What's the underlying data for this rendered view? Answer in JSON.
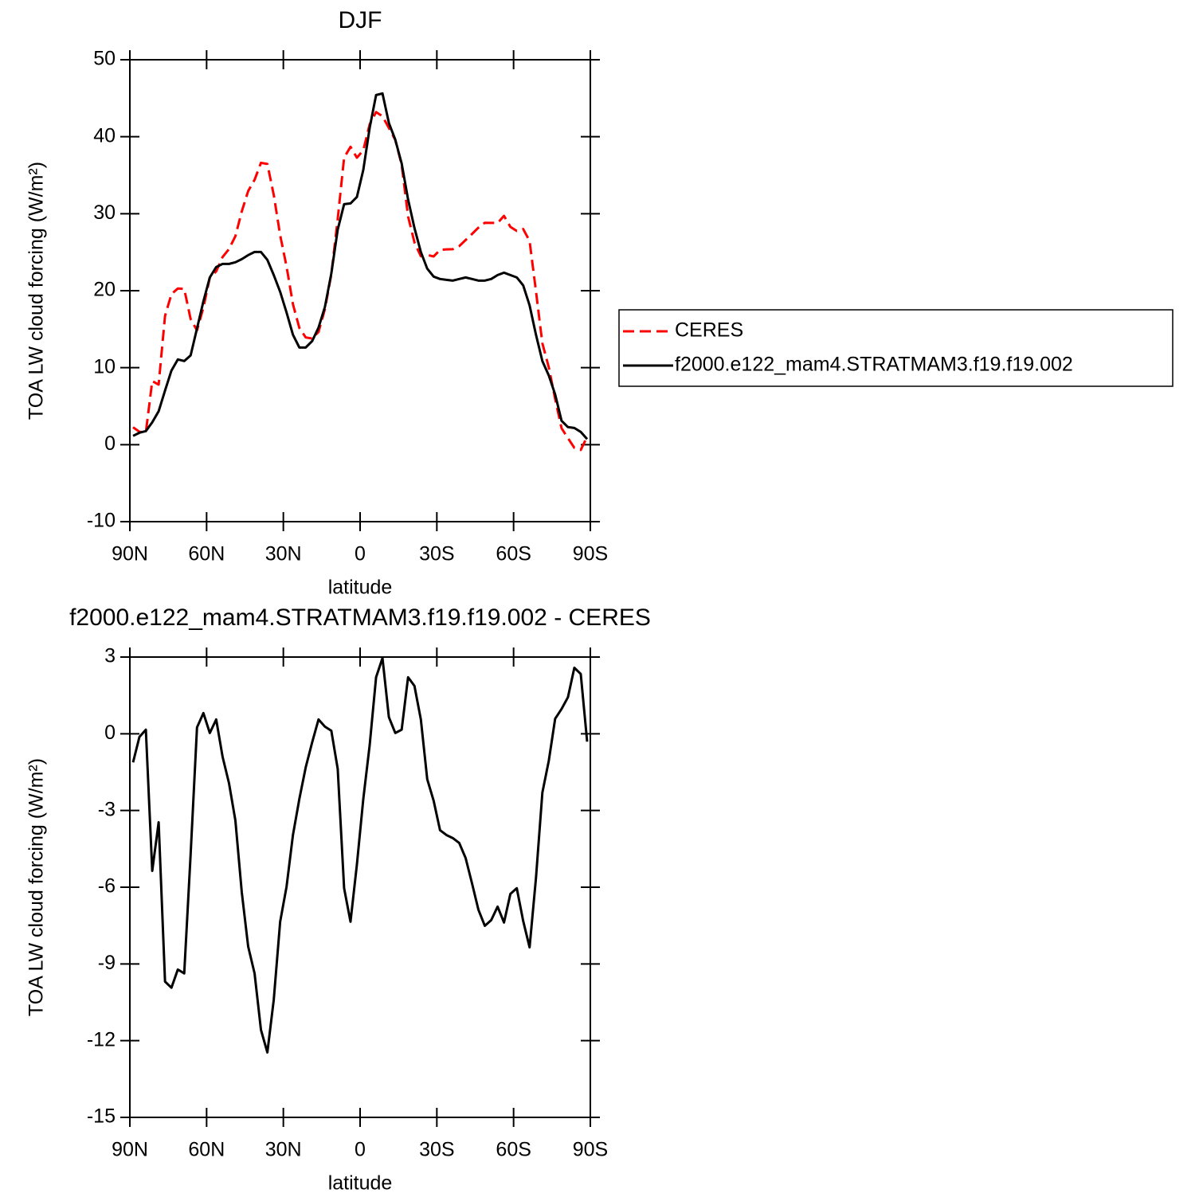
{
  "chart_data": [
    {
      "type": "line",
      "title": "DJF",
      "x_label": "latitude",
      "y_label": "TOA LW cloud forcing (W/m²)",
      "x": [
        88.75,
        86.25,
        83.75,
        81.25,
        78.75,
        76.25,
        73.75,
        71.25,
        68.75,
        66.25,
        63.75,
        61.25,
        58.75,
        56.25,
        53.75,
        51.25,
        48.75,
        46.25,
        43.75,
        41.25,
        38.75,
        36.25,
        33.75,
        31.25,
        28.75,
        26.25,
        23.75,
        21.25,
        18.75,
        16.25,
        13.75,
        11.25,
        8.75,
        6.25,
        3.75,
        1.25,
        -1.25,
        -3.75,
        -6.25,
        -8.75,
        -11.25,
        -13.75,
        -16.25,
        -18.75,
        -21.25,
        -23.75,
        -26.25,
        -28.75,
        -31.25,
        -33.75,
        -36.25,
        -38.75,
        -41.25,
        -43.75,
        -46.25,
        -48.75,
        -51.25,
        -53.75,
        -56.25,
        -58.75,
        -61.25,
        -63.75,
        -66.25,
        -68.75,
        -71.25,
        -73.75,
        -76.25,
        -78.75,
        -81.25,
        -83.75,
        -86.25,
        -88.75
      ],
      "xlim": [
        90,
        -90
      ],
      "xticks": [
        {
          "value": 90,
          "label": "90N"
        },
        {
          "value": 60,
          "label": "60N"
        },
        {
          "value": 30,
          "label": "30N"
        },
        0,
        {
          "value": -30,
          "label": "30S"
        },
        {
          "value": -60,
          "label": "60S"
        },
        {
          "value": -90,
          "label": "90S"
        }
      ],
      "ylim": [
        -10,
        50
      ],
      "yticks": [
        -10,
        0,
        10,
        20,
        30,
        40,
        50
      ],
      "legend": "right",
      "series": [
        {
          "name": "CERES",
          "color": "#ff0000",
          "dash": "dashed",
          "values": [
            2.26,
            1.67,
            1.6,
            8.26,
            7.8,
            16.72,
            19.55,
            20.29,
            20.23,
            16.32,
            14.85,
            17.81,
            21.69,
            22.51,
            24.38,
            25.41,
            27.08,
            30.3,
            32.94,
            34.4,
            36.61,
            36.46,
            32.43,
            27.21,
            23.15,
            18.24,
            15.17,
            13.93,
            13.79,
            14.64,
            17.62,
            22.12,
            29.3,
            37.28,
            38.69,
            37.28,
            38.24,
            41.61,
            43.2,
            42.66,
            41.14,
            39.59,
            36.36,
            29.65,
            26.27,
            24.47,
            24.64,
            24.45,
            25.29,
            25.37,
            25.39,
            25.79,
            26.58,
            27.37,
            28.19,
            28.82,
            28.81,
            28.79,
            29.72,
            28.29,
            27.76,
            28.01,
            26.45,
            19.92,
            13.16,
            10.06,
            5.93,
            2.13,
            0.85,
            -0.41,
            -0.68,
            1.03
          ]
        },
        {
          "name": "f2000.e122_mam4.STRATMAM3.f19.f19.002",
          "color": "#000000",
          "dash": "solid",
          "values": [
            1.14,
            1.55,
            1.76,
            2.9,
            4.34,
            7.03,
            9.62,
            11.07,
            10.86,
            11.59,
            15.1,
            18.62,
            21.72,
            23.07,
            23.48,
            23.48,
            23.69,
            24.1,
            24.62,
            25.03,
            25.03,
            24.0,
            22.03,
            19.86,
            17.17,
            14.28,
            12.62,
            12.62,
            13.45,
            15.2,
            17.9,
            22.24,
            27.93,
            31.24,
            31.34,
            32.17,
            35.69,
            41.17,
            45.41,
            45.62,
            41.79,
            39.62,
            36.52,
            31.86,
            28.14,
            25.03,
            22.86,
            21.83,
            21.52,
            21.41,
            21.31,
            21.52,
            21.72,
            21.52,
            21.31,
            21.31,
            21.52,
            22.03,
            22.34,
            22.03,
            21.72,
            20.69,
            18.1,
            14.28,
            10.86,
            9.0,
            6.52,
            3.1,
            2.28,
            2.17,
            1.66,
            0.72
          ]
        }
      ]
    },
    {
      "type": "line",
      "title": "f2000.e122_mam4.STRATMAM3.f19.f19.002 - CERES",
      "x_label": "latitude",
      "y_label": "TOA LW cloud forcing (W/m²)",
      "x": [
        88.75,
        86.25,
        83.75,
        81.25,
        78.75,
        76.25,
        73.75,
        71.25,
        68.75,
        66.25,
        63.75,
        61.25,
        58.75,
        56.25,
        53.75,
        51.25,
        48.75,
        46.25,
        43.75,
        41.25,
        38.75,
        36.25,
        33.75,
        31.25,
        28.75,
        26.25,
        23.75,
        21.25,
        18.75,
        16.25,
        13.75,
        11.25,
        8.75,
        6.25,
        3.75,
        1.25,
        -1.25,
        -3.75,
        -6.25,
        -8.75,
        -11.25,
        -13.75,
        -16.25,
        -18.75,
        -21.25,
        -23.75,
        -26.25,
        -28.75,
        -31.25,
        -33.75,
        -36.25,
        -38.75,
        -41.25,
        -43.75,
        -46.25,
        -48.75,
        -51.25,
        -53.75,
        -56.25,
        -58.75,
        -61.25,
        -63.75,
        -66.25,
        -68.75,
        -71.25,
        -73.75,
        -76.25,
        -78.75,
        -81.25,
        -83.75,
        -86.25,
        -88.75
      ],
      "xlim": [
        90,
        -90
      ],
      "xticks": [
        {
          "value": 90,
          "label": "90N"
        },
        {
          "value": 60,
          "label": "60N"
        },
        {
          "value": 30,
          "label": "30N"
        },
        0,
        {
          "value": -30,
          "label": "30S"
        },
        {
          "value": -60,
          "label": "60S"
        },
        {
          "value": -90,
          "label": "90S"
        }
      ],
      "ylim": [
        -15,
        3
      ],
      "yticks": [
        -15,
        -12,
        -9,
        -6,
        -3,
        0,
        3
      ],
      "color": "#000000",
      "values": [
        -1.12,
        -0.12,
        0.16,
        -5.36,
        -3.46,
        -9.69,
        -9.93,
        -9.22,
        -9.37,
        -4.73,
        0.25,
        0.81,
        0.03,
        0.56,
        -0.9,
        -1.93,
        -3.39,
        -6.2,
        -8.32,
        -9.37,
        -11.58,
        -12.46,
        -10.4,
        -7.35,
        -5.98,
        -3.96,
        -2.55,
        -1.31,
        -0.34,
        0.56,
        0.28,
        0.12,
        -1.37,
        -6.04,
        -7.35,
        -5.11,
        -2.55,
        -0.44,
        2.21,
        2.96,
        0.65,
        0.03,
        0.16,
        2.21,
        1.87,
        0.56,
        -1.78,
        -2.62,
        -3.77,
        -3.96,
        -4.08,
        -4.27,
        -4.86,
        -5.85,
        -6.88,
        -7.51,
        -7.29,
        -6.76,
        -7.38,
        -6.26,
        -6.04,
        -7.32,
        -8.35,
        -5.64,
        -2.3,
        -1.06,
        0.59,
        0.97,
        1.43,
        2.58,
        2.34,
        -0.31
      ]
    }
  ]
}
